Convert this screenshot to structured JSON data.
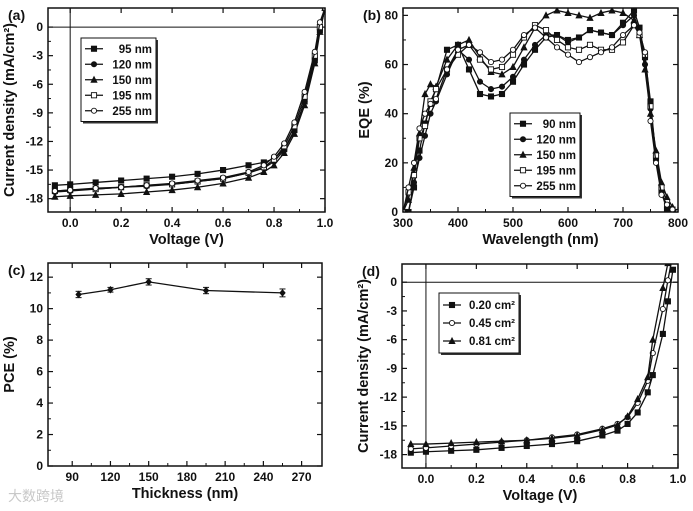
{
  "watermark": "大数跨境",
  "chart_data": [
    {
      "id": "a",
      "panel_label": "(a)",
      "type": "line",
      "xlabel": "Voltage (V)",
      "ylabel": "Current density (mA/cm²)",
      "xlim": [
        -0.087,
        1.0
      ],
      "ylim": [
        -19.4,
        2
      ],
      "xticks": [
        0.0,
        0.2,
        0.4,
        0.6,
        0.8,
        1.0
      ],
      "xtick_labels": [
        "0.0",
        "0.2",
        "0.4",
        "0.6",
        "0.8",
        "1.0"
      ],
      "yticks": [
        0,
        -3,
        -6,
        -9,
        -12,
        -15,
        -18
      ],
      "ytick_labels": [
        "0",
        "-3",
        "-6",
        "-9",
        "-12",
        "-15",
        "-18"
      ],
      "zero_lines": true,
      "legend_position": "upper-left",
      "x": [
        -0.06,
        0,
        0.1,
        0.2,
        0.3,
        0.4,
        0.5,
        0.6,
        0.7,
        0.76,
        0.8,
        0.84,
        0.88,
        0.92,
        0.96,
        0.98,
        1.0
      ],
      "series": [
        {
          "name": "95 nm",
          "marker": "square-filled",
          "values": [
            -16.6,
            -16.5,
            -16.3,
            -16.1,
            -15.9,
            -15.7,
            -15.4,
            -15.0,
            -14.5,
            -14.2,
            -13.8,
            -12.8,
            -10.8,
            -7.8,
            -3.5,
            -0.3,
            2
          ]
        },
        {
          "name": "120 nm",
          "marker": "circle-filled",
          "values": [
            -17.3,
            -17.2,
            -17.0,
            -16.8,
            -16.7,
            -16.5,
            -16.2,
            -15.9,
            -15.3,
            -14.8,
            -14.1,
            -12.9,
            -10.9,
            -7.8,
            -3.4,
            -0.3,
            2
          ]
        },
        {
          "name": "150 nm",
          "marker": "triangle-filled",
          "values": [
            -17.8,
            -17.7,
            -17.6,
            -17.5,
            -17.3,
            -17.1,
            -16.8,
            -16.4,
            -15.8,
            -15.2,
            -14.5,
            -13.2,
            -11.2,
            -8.2,
            -3.8,
            -0.5,
            2
          ]
        },
        {
          "name": "195 nm",
          "marker": "square-open",
          "values": [
            -17.2,
            -17.1,
            -17.0,
            -16.8,
            -16.6,
            -16.5,
            -16.2,
            -15.9,
            -15.3,
            -14.7,
            -13.9,
            -12.5,
            -10.4,
            -7.3,
            -3.0,
            0,
            2
          ]
        },
        {
          "name": "255 nm",
          "marker": "circle-open",
          "values": [
            -17.2,
            -17.1,
            -16.9,
            -16.8,
            -16.6,
            -16.4,
            -16.1,
            -15.8,
            -15.2,
            -14.5,
            -13.6,
            -12.2,
            -10.0,
            -6.8,
            -2.6,
            0.5,
            2
          ]
        }
      ]
    },
    {
      "id": "b",
      "panel_label": "(b)",
      "type": "line",
      "xlabel": "Wavelength (nm)",
      "ylabel": "EQE (%)",
      "xlim": [
        300,
        800
      ],
      "ylim": [
        0,
        83
      ],
      "xticks": [
        300,
        400,
        500,
        600,
        700,
        800
      ],
      "xtick_labels": [
        "300",
        "400",
        "500",
        "600",
        "700",
        "800"
      ],
      "yticks": [
        0,
        20,
        40,
        60,
        80
      ],
      "ytick_labels": [
        "0",
        "20",
        "40",
        "60",
        "80"
      ],
      "zero_lines": false,
      "legend_position": "center",
      "x": [
        300,
        310,
        320,
        330,
        340,
        350,
        360,
        380,
        400,
        420,
        440,
        460,
        480,
        500,
        520,
        540,
        560,
        580,
        600,
        620,
        640,
        660,
        680,
        700,
        720,
        730,
        740,
        750,
        760,
        770,
        780,
        790,
        800
      ],
      "series": [
        {
          "name": "90 nm",
          "marker": "square-filled",
          "values": [
            0,
            0,
            10,
            25,
            36,
            44,
            50,
            66,
            68,
            58,
            48,
            47,
            48,
            53,
            60,
            66,
            71,
            72,
            70,
            71,
            74,
            73,
            72,
            77,
            82,
            75,
            63,
            45,
            22,
            8,
            1,
            0,
            0
          ]
        },
        {
          "name": "120 nm",
          "marker": "circle-filled",
          "values": [
            0,
            0,
            12,
            22,
            31,
            40,
            45,
            56,
            66,
            62,
            53,
            50,
            51,
            55,
            62,
            68,
            72,
            72,
            69,
            71,
            74,
            73,
            72,
            76,
            80,
            73,
            60,
            42,
            21,
            8,
            2,
            0,
            0
          ]
        },
        {
          "name": "150 nm",
          "marker": "triangle-filled",
          "values": [
            0,
            5,
            18,
            32,
            48,
            52,
            51,
            62,
            68,
            70,
            63,
            57,
            56,
            59,
            67,
            75,
            80,
            82,
            81,
            80,
            79,
            81,
            82,
            81,
            78,
            72,
            58,
            40,
            25,
            12,
            6,
            2,
            0
          ]
        },
        {
          "name": "195 nm",
          "marker": "square-open",
          "values": [
            0,
            8,
            15,
            30,
            35,
            45,
            50,
            58,
            64,
            68,
            62,
            58,
            59,
            64,
            71,
            76,
            74,
            70,
            67,
            66,
            68,
            66,
            66,
            69,
            76,
            72,
            64,
            43,
            23,
            10,
            4,
            1,
            0
          ]
        },
        {
          "name": "255 nm",
          "marker": "circle-open",
          "values": [
            0,
            10,
            20,
            34,
            40,
            44,
            46,
            58,
            66,
            68,
            65,
            61,
            62,
            66,
            72,
            75,
            71,
            67,
            64,
            61,
            63,
            65,
            67,
            72,
            76,
            73,
            65,
            37,
            20,
            7,
            3,
            1,
            0
          ]
        }
      ]
    },
    {
      "id": "c",
      "panel_label": "(c)",
      "type": "line",
      "xlabel": "Thickness (nm)",
      "ylabel": "PCE (%)",
      "xlim": [
        71,
        286
      ],
      "ylim": [
        0,
        12.9
      ],
      "xticks": [
        90,
        120,
        150,
        180,
        210,
        240,
        270
      ],
      "xtick_labels": [
        "90",
        "120",
        "150",
        "180",
        "210",
        "240",
        "270"
      ],
      "yticks": [
        0,
        2,
        4,
        6,
        8,
        10,
        12
      ],
      "ytick_labels": [
        "0",
        "2",
        "4",
        "6",
        "8",
        "10",
        "12"
      ],
      "zero_lines": false,
      "legend_position": "none",
      "x": [
        95,
        120,
        150,
        195,
        255
      ],
      "series": [
        {
          "name": "PCE",
          "marker": "diamond-filled",
          "values": [
            10.9,
            11.2,
            11.7,
            11.15,
            11.0
          ],
          "errors": [
            0.2,
            0.15,
            0.2,
            0.2,
            0.25
          ]
        }
      ]
    },
    {
      "id": "d",
      "panel_label": "(d)",
      "type": "line",
      "xlabel": "Voltage (V)",
      "ylabel": "Current density (mA/cm²)",
      "xlim": [
        -0.095,
        1.0
      ],
      "ylim": [
        -19.4,
        1.9
      ],
      "xticks": [
        0.0,
        0.2,
        0.4,
        0.6,
        0.8,
        1.0
      ],
      "xtick_labels": [
        "0.0",
        "0.2",
        "0.4",
        "0.6",
        "0.8",
        "1.0"
      ],
      "yticks": [
        0,
        -3,
        -6,
        -9,
        -12,
        -15,
        -18
      ],
      "ytick_labels": [
        "0",
        "-3",
        "-6",
        "-9",
        "-12",
        "-15",
        "-18"
      ],
      "zero_lines": true,
      "legend_position": "upper-left",
      "x": [
        -0.06,
        0,
        0.1,
        0.2,
        0.3,
        0.4,
        0.5,
        0.6,
        0.7,
        0.76,
        0.8,
        0.84,
        0.88,
        0.9,
        0.94,
        0.96,
        0.98
      ],
      "series": [
        {
          "name": "0.20 cm²",
          "marker": "square-filled",
          "values": [
            -17.8,
            -17.7,
            -17.6,
            -17.5,
            -17.3,
            -17.1,
            -16.9,
            -16.6,
            -16.0,
            -15.5,
            -14.8,
            -13.6,
            -11.5,
            -9.7,
            -5.4,
            -2.0,
            1.3
          ]
        },
        {
          "name": "0.45 cm²",
          "marker": "circle-open",
          "values": [
            -17.4,
            -17.3,
            -17.1,
            -16.9,
            -16.7,
            -16.5,
            -16.2,
            -15.9,
            -15.3,
            -14.8,
            -14.1,
            -12.6,
            -10.3,
            -7.4,
            -2.8,
            0.2,
            3
          ]
        },
        {
          "name": "0.81 cm²",
          "marker": "triangle-filled",
          "values": [
            -16.9,
            -16.9,
            -16.8,
            -16.7,
            -16.6,
            -16.5,
            -16.3,
            -16.0,
            -15.4,
            -14.9,
            -14.0,
            -12.2,
            -9.9,
            -6.0,
            -0.6,
            2,
            4
          ]
        }
      ]
    }
  ]
}
